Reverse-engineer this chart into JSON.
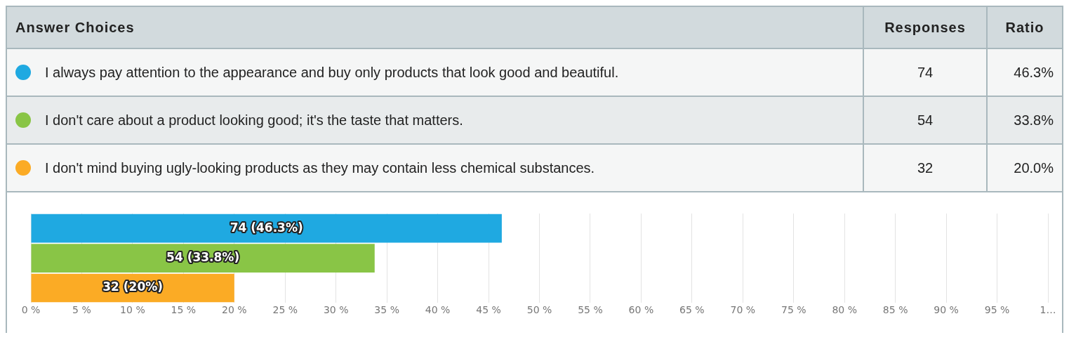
{
  "chart_data": {
    "type": "bar",
    "orientation": "horizontal",
    "categories": [
      null,
      null,
      null
    ],
    "values": [
      46.3,
      33.8,
      20.0
    ],
    "colors": [
      "#1fa9e1",
      "#89c546",
      "#fbab25"
    ],
    "value_labels": [
      "74 (46.3%)",
      "54 (33.8%)",
      "32 (20%)"
    ],
    "xlim": [
      0,
      100
    ],
    "xticks": [
      {
        "value": 0,
        "label": "0 %"
      },
      {
        "value": 5,
        "label": "5 %"
      },
      {
        "value": 10,
        "label": "10 %"
      },
      {
        "value": 15,
        "label": "15 %"
      },
      {
        "value": 20,
        "label": "20 %"
      },
      {
        "value": 25,
        "label": "25 %"
      },
      {
        "value": 30,
        "label": "30 %"
      },
      {
        "value": 35,
        "label": "35 %"
      },
      {
        "value": 40,
        "label": "40 %"
      },
      {
        "value": 45,
        "label": "45 %"
      },
      {
        "value": 50,
        "label": "50 %"
      },
      {
        "value": 55,
        "label": "55 %"
      },
      {
        "value": 60,
        "label": "60 %"
      },
      {
        "value": 65,
        "label": "65 %"
      },
      {
        "value": 70,
        "label": "70 %"
      },
      {
        "value": 75,
        "label": "75 %"
      },
      {
        "value": 80,
        "label": "80 %"
      },
      {
        "value": 85,
        "label": "85 %"
      },
      {
        "value": 90,
        "label": "90 %"
      },
      {
        "value": 95,
        "label": "95 %"
      },
      {
        "value": 100,
        "label": "1…"
      }
    ],
    "grid": "x",
    "tick_labels": "x",
    "legend": false,
    "annotations": [
      "Answer Choices",
      "Responses",
      "Ratio",
      "I always pay attention to the appearance and buy only products that look good and beautiful.",
      "74",
      "46.3%",
      "I don't care about a product looking good; it's the taste that matters.",
      "54",
      "33.8%",
      "I don't mind buying ugly-looking products as they may contain less chemical substances.",
      "32",
      "20.0%"
    ]
  }
}
